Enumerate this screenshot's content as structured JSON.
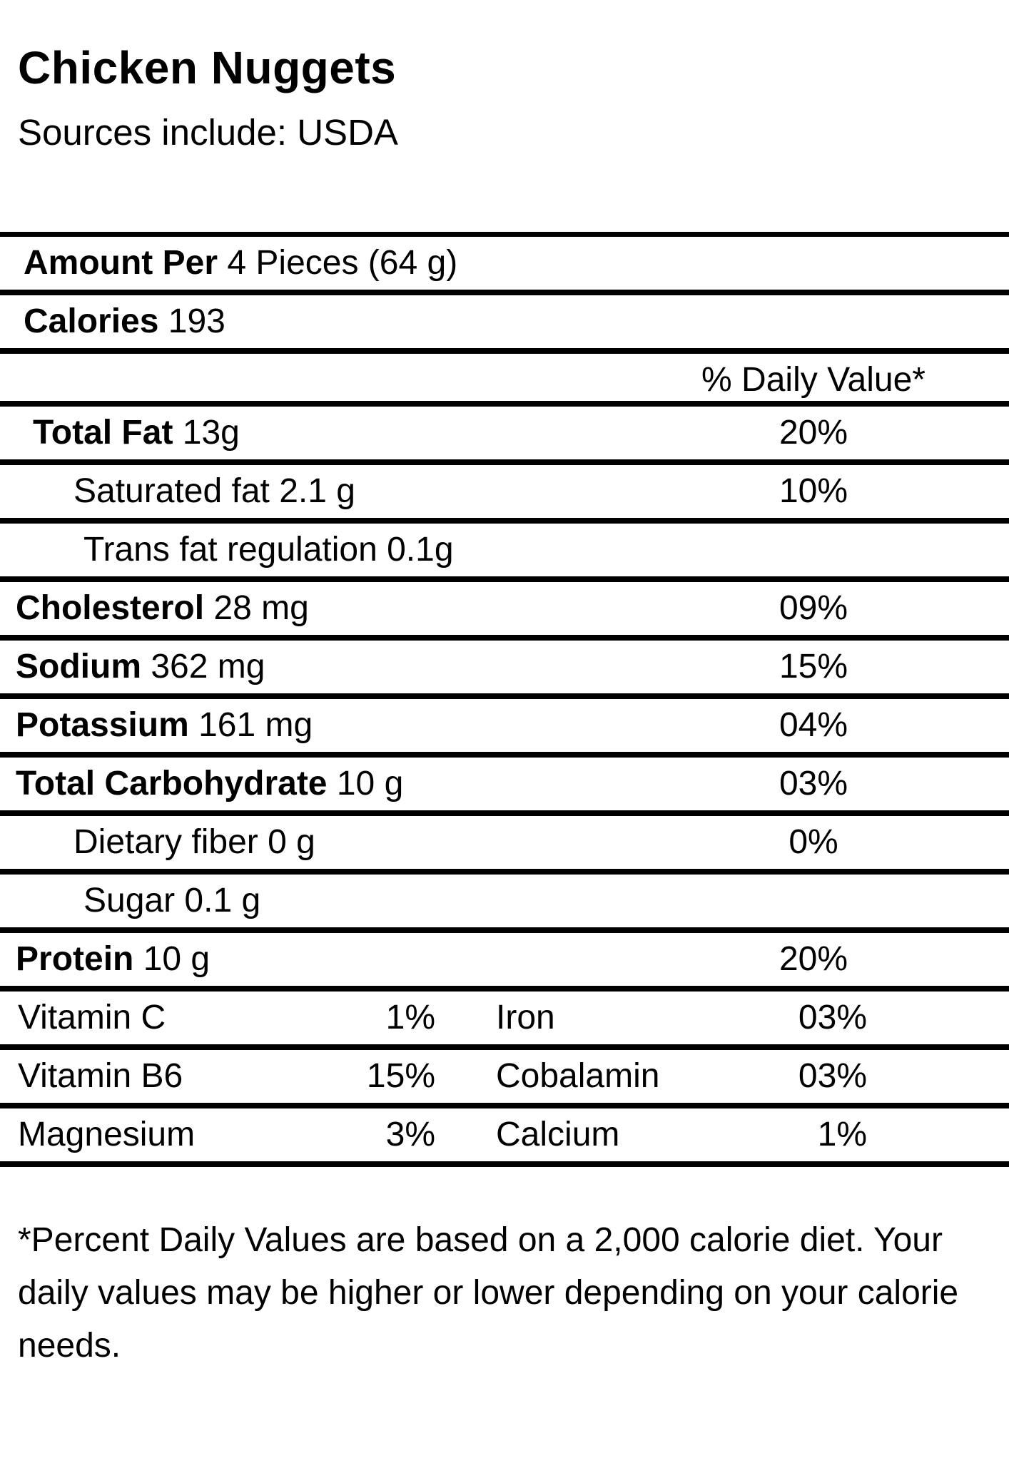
{
  "page": {
    "title": "Chicken Nuggets",
    "source_note": "Sources include: USDA"
  },
  "table": {
    "dv_header": "% Daily Value*",
    "rows": [
      {
        "bold": "Amount Per",
        "text": " 4 Pieces (64 g)",
        "pct": ""
      },
      {
        "bold": "Calories",
        "text": " 193",
        "pct": ""
      },
      {
        "bold": "Total Fat",
        "text": " 13g",
        "pct": "20%"
      },
      {
        "bold": "",
        "text": "Saturated fat 2.1 g",
        "pct": "10%"
      },
      {
        "bold": "",
        "text": "Trans fat regulation 0.1g",
        "pct": ""
      },
      {
        "bold": "Cholesterol",
        "text": " 28 mg",
        "pct": "09%"
      },
      {
        "bold": "Sodium",
        "text": " 362 mg",
        "pct": "15%"
      },
      {
        "bold": "Potassium",
        "text": " 161 mg",
        "pct": "04%"
      },
      {
        "bold": "Total Carbohydrate",
        "text": " 10 g",
        "pct": "03%"
      },
      {
        "bold": "",
        "text": "Dietary fiber 0 g",
        "pct": "0%"
      },
      {
        "bold": "",
        "text": "Sugar 0.1 g",
        "pct": ""
      },
      {
        "bold": "Protein",
        "text": " 10 g",
        "pct": "20%"
      }
    ],
    "vitamins": [
      {
        "label": "Vitamin C",
        "value": "1%",
        "label2": "Iron",
        "value2": "03%"
      },
      {
        "label": "Vitamin B6",
        "value": "15%",
        "label2": "Cobalamin",
        "value2": "03%"
      },
      {
        "label": "Magnesium",
        "value": "3%",
        "label2": "Calcium",
        "value2": "1%"
      }
    ]
  },
  "footnote": "*Percent Daily Values are based on a 2,000 calorie diet. Your daily values may be higher or lower depending on your calorie needs."
}
